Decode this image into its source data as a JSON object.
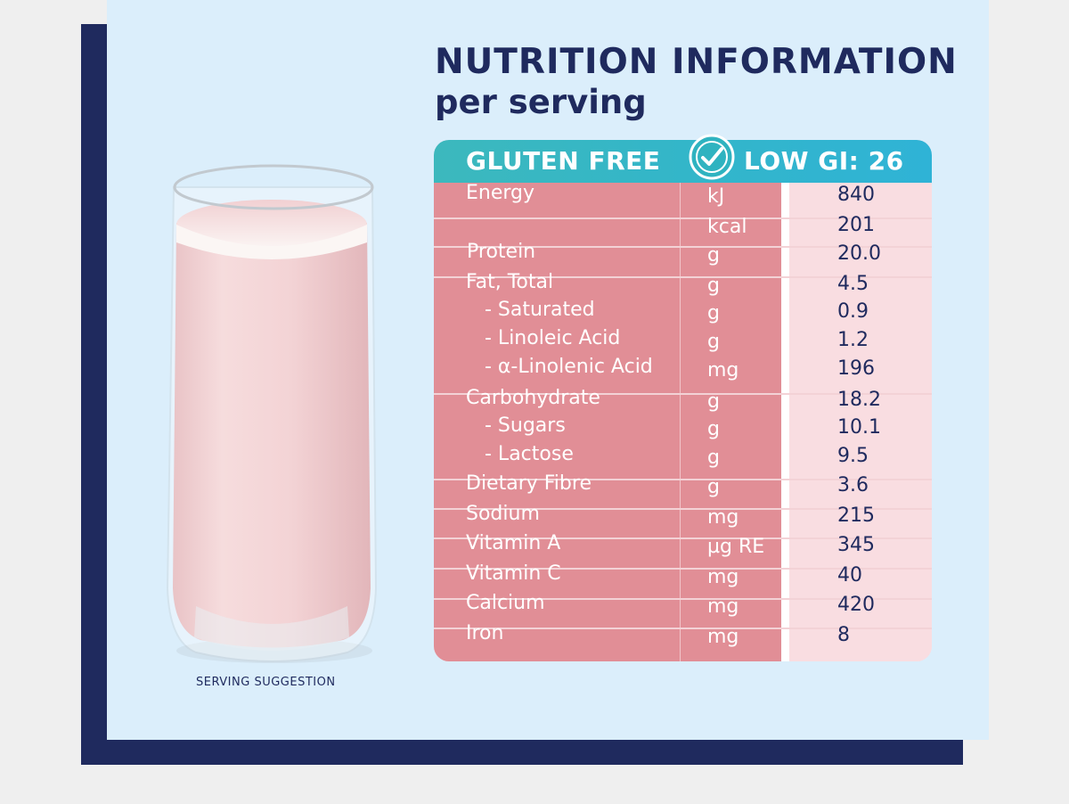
{
  "title": "NUTRITION INFORMATION",
  "subtitle": "per serving",
  "caption": "SERVING SUGGESTION",
  "badge": {
    "left": "GLUTEN FREE",
    "right": "LOW GI: 26",
    "icon": "checkmark-icon"
  },
  "colors": {
    "navy": "#1f2a5e",
    "panel": "#dbeefb",
    "teal": "#33b6c9",
    "rose": "#e18e96",
    "pale_rose": "#f9dde1"
  },
  "rows": [
    {
      "name": "Energy",
      "unit": "kJ",
      "value": "840"
    },
    {
      "name": "",
      "unit": "kcal",
      "value": "201"
    },
    {
      "name": "Protein",
      "unit": "g",
      "value": "20.0"
    },
    {
      "name": "Fat, Total",
      "unit": "g",
      "value": "4.5"
    },
    {
      "name": "- Saturated",
      "unit": "g",
      "value": "0.9"
    },
    {
      "name": "- Linoleic Acid",
      "unit": "g",
      "value": "1.2"
    },
    {
      "name": "- α-Linolenic Acid",
      "unit": "mg",
      "value": "196"
    },
    {
      "name": "Carbohydrate",
      "unit": "g",
      "value": "18.2"
    },
    {
      "name": "- Sugars",
      "unit": "g",
      "value": "10.1"
    },
    {
      "name": "- Lactose",
      "unit": "g",
      "value": "9.5"
    },
    {
      "name": "Dietary Fibre",
      "unit": "g",
      "value": "3.6"
    },
    {
      "name": "Sodium",
      "unit": "mg",
      "value": "215"
    },
    {
      "name": "Vitamin A",
      "unit": "µg RE",
      "value": "345"
    },
    {
      "name": "Vitamin C",
      "unit": "mg",
      "value": "40"
    },
    {
      "name": "Calcium",
      "unit": "mg",
      "value": "420"
    },
    {
      "name": "Iron",
      "unit": "mg",
      "value": "8"
    }
  ]
}
